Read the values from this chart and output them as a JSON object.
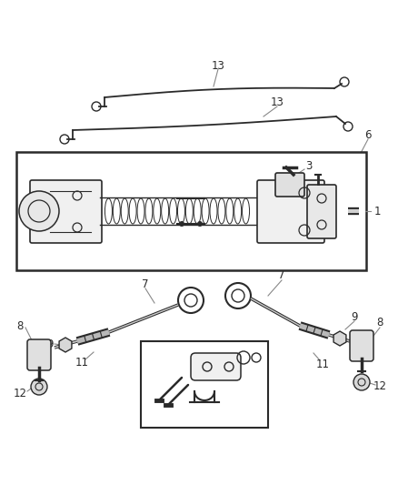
{
  "bg_color": "#ffffff",
  "line_color": "#2a2a2a",
  "label_color": "#2a2a2a",
  "figsize": [
    4.38,
    5.33
  ],
  "dpi": 100,
  "fontsize": 8.5
}
